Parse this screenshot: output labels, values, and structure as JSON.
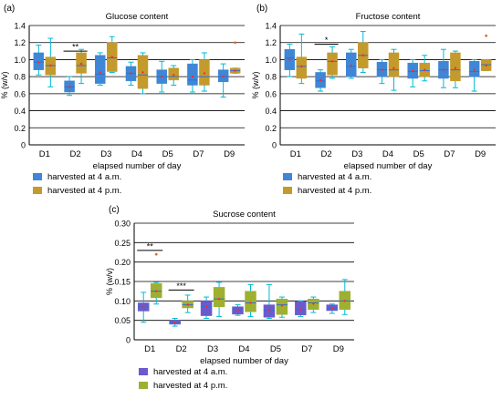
{
  "chart_data": [
    {
      "type": "box",
      "panel_label": "(a)",
      "title": "Glucose content",
      "ylabel": "% (w/v)",
      "xlabel": "elapsed number of day",
      "ylim": [
        0,
        1.4
      ],
      "yticks": [
        "0",
        "0.2",
        "0.4",
        "0.6",
        "0.8",
        "1.0",
        "1.2",
        "1.4"
      ],
      "categories": [
        "D1",
        "D2",
        "D3",
        "D4",
        "D5",
        "D7",
        "D9"
      ],
      "legend": [
        "harvested at 4 a.m.",
        "harvested at 4 p.m."
      ],
      "series": [
        {
          "name": "harvested at 4 a.m.",
          "color": "#3f86d6",
          "boxes": [
            {
              "min": 0.82,
              "q1": 0.88,
              "median": 0.97,
              "q3": 1.08,
              "max": 1.17,
              "mean": 0.97,
              "outliers": []
            },
            {
              "min": 0.58,
              "q1": 0.62,
              "median": 0.68,
              "q3": 0.75,
              "max": 0.8,
              "mean": 0.68,
              "outliers": []
            },
            {
              "min": 0.7,
              "q1": 0.72,
              "median": 0.83,
              "q3": 1.05,
              "max": 1.08,
              "mean": 0.85,
              "outliers": []
            },
            {
              "min": 0.7,
              "q1": 0.75,
              "median": 0.84,
              "q3": 0.92,
              "max": 0.97,
              "mean": 0.84,
              "outliers": []
            },
            {
              "min": 0.62,
              "q1": 0.72,
              "median": 0.8,
              "q3": 0.88,
              "max": 0.98,
              "mean": 0.8,
              "outliers": []
            },
            {
              "min": 0.62,
              "q1": 0.7,
              "median": 0.76,
              "q3": 0.95,
              "max": 1.0,
              "mean": 0.8,
              "outliers": []
            },
            {
              "min": 0.56,
              "q1": 0.74,
              "median": 0.8,
              "q3": 0.88,
              "max": 0.95,
              "mean": 0.8,
              "outliers": []
            }
          ]
        },
        {
          "name": "harvested at 4 p.m.",
          "color": "#c49a2c",
          "boxes": [
            {
              "min": 0.68,
              "q1": 0.82,
              "median": 0.93,
              "q3": 1.03,
              "max": 1.25,
              "mean": 0.93,
              "outliers": []
            },
            {
              "min": 0.72,
              "q1": 0.84,
              "median": 0.93,
              "q3": 1.08,
              "max": 1.12,
              "mean": 0.95,
              "outliers": []
            },
            {
              "min": 0.85,
              "q1": 0.86,
              "median": 1.02,
              "q3": 1.2,
              "max": 1.27,
              "mean": 1.03,
              "outliers": []
            },
            {
              "min": 0.6,
              "q1": 0.66,
              "median": 0.82,
              "q3": 1.05,
              "max": 1.08,
              "mean": 0.85,
              "outliers": []
            },
            {
              "min": 0.7,
              "q1": 0.76,
              "median": 0.8,
              "q3": 0.9,
              "max": 0.93,
              "mean": 0.82,
              "outliers": []
            },
            {
              "min": 0.63,
              "q1": 0.7,
              "median": 0.8,
              "q3": 1.0,
              "max": 1.08,
              "mean": 0.84,
              "outliers": []
            },
            {
              "min": 0.84,
              "q1": 0.84,
              "median": 0.87,
              "q3": 0.9,
              "max": 0.9,
              "mean": 0.87,
              "outliers": [
                1.2
              ]
            }
          ]
        }
      ],
      "significance": [
        {
          "category": "D2",
          "label": "**",
          "y": 1.1
        }
      ]
    },
    {
      "type": "box",
      "panel_label": "(b)",
      "title": "Fructose content",
      "ylabel": "% (w/v)",
      "xlabel": "elapsed number of day",
      "ylim": [
        0,
        1.4
      ],
      "yticks": [
        "0",
        "0.2",
        "0.4",
        "0.6",
        "0.8",
        "1.0",
        "1.2",
        "1.4"
      ],
      "categories": [
        "D1",
        "D2",
        "D3",
        "D4",
        "D5",
        "D7",
        "D9"
      ],
      "legend": [
        "harvested at 4 a.m.",
        "harvested at 4 p.m."
      ],
      "series": [
        {
          "name": "harvested at 4 a.m.",
          "color": "#3f86d6",
          "boxes": [
            {
              "min": 0.8,
              "q1": 0.88,
              "median": 1.02,
              "q3": 1.12,
              "max": 1.18,
              "mean": 1.0,
              "outliers": []
            },
            {
              "min": 0.63,
              "q1": 0.67,
              "median": 0.75,
              "q3": 0.85,
              "max": 0.88,
              "mean": 0.76,
              "outliers": []
            },
            {
              "min": 0.78,
              "q1": 0.8,
              "median": 0.92,
              "q3": 1.08,
              "max": 1.12,
              "mean": 0.93,
              "outliers": []
            },
            {
              "min": 0.72,
              "q1": 0.8,
              "median": 0.88,
              "q3": 0.97,
              "max": 1.0,
              "mean": 0.88,
              "outliers": []
            },
            {
              "min": 0.68,
              "q1": 0.78,
              "median": 0.86,
              "q3": 0.96,
              "max": 1.0,
              "mean": 0.87,
              "outliers": []
            },
            {
              "min": 0.67,
              "q1": 0.78,
              "median": 0.88,
              "q3": 0.98,
              "max": 1.12,
              "mean": 0.88,
              "outliers": []
            },
            {
              "min": 0.63,
              "q1": 0.8,
              "median": 0.86,
              "q3": 0.98,
              "max": 1.0,
              "mean": 0.88,
              "outliers": []
            }
          ]
        },
        {
          "name": "harvested at 4 p.m.",
          "color": "#c49a2c",
          "boxes": [
            {
              "min": 0.72,
              "q1": 0.78,
              "median": 0.92,
              "q3": 1.03,
              "max": 1.3,
              "mean": 0.92,
              "outliers": []
            },
            {
              "min": 0.78,
              "q1": 0.82,
              "median": 0.98,
              "q3": 1.08,
              "max": 1.15,
              "mean": 0.98,
              "outliers": []
            },
            {
              "min": 0.85,
              "q1": 0.9,
              "median": 1.05,
              "q3": 1.2,
              "max": 1.33,
              "mean": 1.05,
              "outliers": []
            },
            {
              "min": 0.64,
              "q1": 0.8,
              "median": 0.88,
              "q3": 1.08,
              "max": 1.12,
              "mean": 0.9,
              "outliers": []
            },
            {
              "min": 0.75,
              "q1": 0.8,
              "median": 0.87,
              "q3": 0.96,
              "max": 1.05,
              "mean": 0.88,
              "outliers": []
            },
            {
              "min": 0.67,
              "q1": 0.75,
              "median": 0.88,
              "q3": 1.08,
              "max": 1.1,
              "mean": 0.9,
              "outliers": []
            },
            {
              "min": 0.87,
              "q1": 0.87,
              "median": 0.94,
              "q3": 1.0,
              "max": 1.0,
              "mean": 0.93,
              "outliers": [
                1.28
              ]
            }
          ]
        }
      ],
      "significance": [
        {
          "category": "D2",
          "label": "*",
          "y": 1.18
        }
      ]
    },
    {
      "type": "box",
      "panel_label": "(c)",
      "title": "Sucrose content",
      "ylabel": "% (w/v)",
      "xlabel": "elapsed number of day",
      "ylim": [
        0,
        0.3
      ],
      "yticks": [
        "0",
        "0.05",
        "0.10",
        "0.15",
        "0.20",
        "0.25",
        "0.30"
      ],
      "categories": [
        "D1",
        "D2",
        "D3",
        "D4",
        "D5",
        "D7",
        "D9"
      ],
      "legend": [
        "harvested at 4 a.m.",
        "harvested at 4 p.m."
      ],
      "series": [
        {
          "name": "harvested at 4 a.m.",
          "color": "#6a5acd",
          "boxes": [
            {
              "min": 0.045,
              "q1": 0.074,
              "median": 0.085,
              "q3": 0.095,
              "max": 0.122,
              "mean": 0.085,
              "outliers": []
            },
            {
              "min": 0.035,
              "q1": 0.04,
              "median": 0.045,
              "q3": 0.05,
              "max": 0.055,
              "mean": 0.045,
              "outliers": []
            },
            {
              "min": 0.055,
              "q1": 0.062,
              "median": 0.085,
              "q3": 0.1,
              "max": 0.11,
              "mean": 0.085,
              "outliers": []
            },
            {
              "min": 0.063,
              "q1": 0.066,
              "median": 0.078,
              "q3": 0.085,
              "max": 0.09,
              "mean": 0.077,
              "outliers": []
            },
            {
              "min": 0.055,
              "q1": 0.058,
              "median": 0.075,
              "q3": 0.09,
              "max": 0.142,
              "mean": 0.075,
              "outliers": []
            },
            {
              "min": 0.06,
              "q1": 0.064,
              "median": 0.078,
              "q3": 0.098,
              "max": 0.1,
              "mean": 0.078,
              "outliers": []
            },
            {
              "min": 0.068,
              "q1": 0.075,
              "median": 0.08,
              "q3": 0.09,
              "max": 0.092,
              "mean": 0.081,
              "outliers": []
            }
          ]
        },
        {
          "name": "harvested at 4 p.m.",
          "color": "#9db030",
          "boxes": [
            {
              "min": 0.092,
              "q1": 0.108,
              "median": 0.125,
              "q3": 0.145,
              "max": 0.148,
              "mean": 0.125,
              "outliers": [
                0.22
              ]
            },
            {
              "min": 0.07,
              "q1": 0.082,
              "median": 0.09,
              "q3": 0.1,
              "max": 0.115,
              "mean": 0.09,
              "outliers": []
            },
            {
              "min": 0.06,
              "q1": 0.085,
              "median": 0.105,
              "q3": 0.135,
              "max": 0.148,
              "mean": 0.105,
              "outliers": []
            },
            {
              "min": 0.06,
              "q1": 0.072,
              "median": 0.095,
              "q3": 0.125,
              "max": 0.142,
              "mean": 0.095,
              "outliers": []
            },
            {
              "min": 0.058,
              "q1": 0.065,
              "median": 0.09,
              "q3": 0.105,
              "max": 0.11,
              "mean": 0.088,
              "outliers": []
            },
            {
              "min": 0.07,
              "q1": 0.078,
              "median": 0.095,
              "q3": 0.105,
              "max": 0.11,
              "mean": 0.093,
              "outliers": []
            },
            {
              "min": 0.065,
              "q1": 0.078,
              "median": 0.1,
              "q3": 0.125,
              "max": 0.155,
              "mean": 0.1,
              "outliers": []
            }
          ]
        }
      ],
      "significance": [
        {
          "category": "D1",
          "label": "**",
          "y": 0.23
        },
        {
          "category": "D2",
          "label": "***",
          "y": 0.128
        }
      ]
    }
  ]
}
